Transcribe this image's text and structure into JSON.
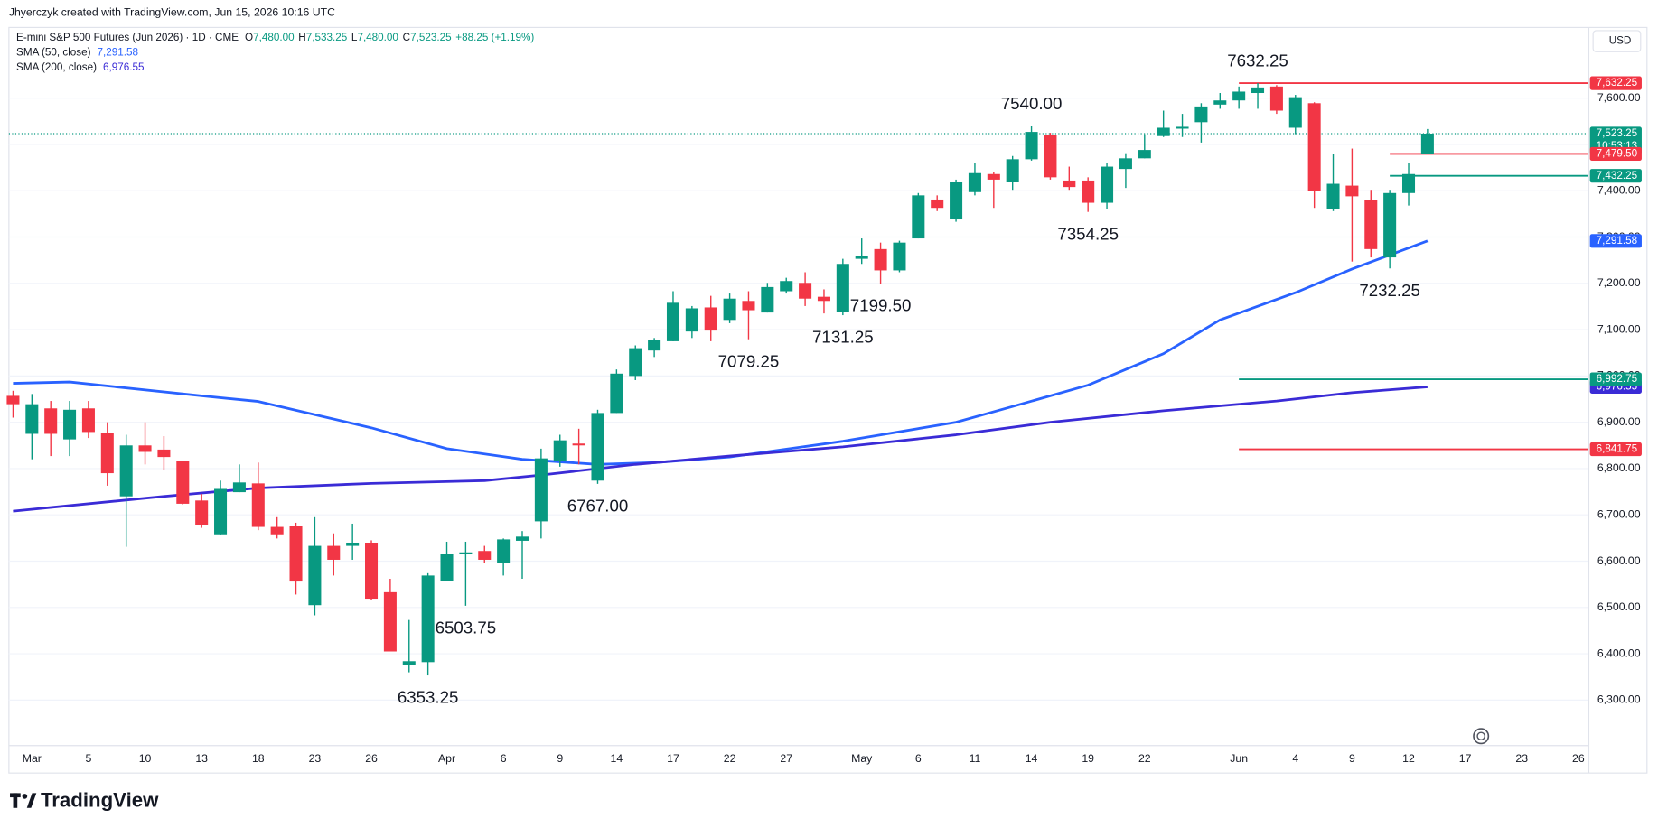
{
  "header": {
    "attribution": "Jhyerczyk created with TradingView.com, Jun 15, 2026 10:16 UTC"
  },
  "chart_data": {
    "type": "candlestick",
    "title": "E-mini S&P 500 Futures (Jun 2026) · 1D · CME",
    "ohlc_legend": [
      {
        "key": "O",
        "value": "7,480.00"
      },
      {
        "key": "H",
        "value": "7,533.25"
      },
      {
        "key": "L",
        "value": "7,480.00"
      },
      {
        "key": "C",
        "value": "7,523.25"
      }
    ],
    "change": "+88.25 (+1.19%)",
    "currency": "USD",
    "categories": [
      null,
      "Mar",
      null,
      null,
      "5",
      null,
      null,
      "10",
      null,
      null,
      "13",
      null,
      null,
      "18",
      null,
      null,
      "23",
      null,
      null,
      "26",
      null,
      null,
      null,
      "Apr",
      null,
      null,
      "6",
      null,
      null,
      "9",
      null,
      null,
      "14",
      null,
      null,
      "17",
      null,
      null,
      "22",
      null,
      null,
      "27",
      null,
      null,
      null,
      "May",
      null,
      null,
      "6",
      null,
      null,
      "11",
      null,
      null,
      "14",
      null,
      null,
      "19",
      null,
      null,
      "22",
      null,
      null,
      null,
      null,
      "Jun",
      null,
      null,
      "4",
      null,
      null,
      "9",
      null,
      null,
      "12",
      null,
      null,
      "17",
      null,
      null,
      "23",
      null,
      null,
      "26"
    ],
    "open": [
      6957,
      6875,
      6930,
      6863,
      6930,
      6877,
      6740,
      6850,
      6841,
      6816,
      6731,
      6658,
      6749,
      6768,
      6674,
      6676,
      6505,
      6633,
      6633,
      6640,
      6533,
      6375,
      6382,
      6558,
      6615,
      6622,
      6597,
      6644,
      6686,
      6816,
      6854,
      6774,
      6920,
      7000,
      7055,
      7075,
      7096,
      7148,
      7121,
      7162,
      7137,
      7183,
      7201,
      7171,
      7139,
      7253,
      7274,
      7228,
      7297,
      7381,
      7338,
      7397,
      7436,
      7418,
      7468,
      7520,
      7422,
      7422,
      7374,
      7447,
      7470,
      7518,
      7534,
      7548,
      7586,
      7595,
      7611,
      7625,
      7536,
      7589,
      7361,
      7411,
      7379,
      7256,
      7395,
      7480,
      null,
      null,
      null,
      null,
      null,
      null,
      null,
      null
    ],
    "high": [
      6968,
      6961,
      6946,
      6946,
      6946,
      6900,
      6873,
      6900,
      6870,
      6816,
      6745,
      6774,
      6809,
      6813,
      6695,
      6683,
      6695,
      6660,
      6681,
      6645,
      6562,
      6473,
      6574,
      6642,
      6642,
      6633,
      6649,
      6665,
      6843,
      6873,
      6886,
      6927,
      7014,
      7066,
      7082,
      7183,
      7151,
      7173,
      7178,
      7183,
      7201,
      7212,
      7224,
      7187,
      7253,
      7297,
      7288,
      7292,
      7395,
      7390,
      7424,
      7459,
      7440,
      7475,
      7540,
      7525,
      7452,
      7429,
      7459,
      7481,
      7522,
      7573,
      7566,
      7589,
      7611,
      7625,
      7632.25,
      7628,
      7607,
      7591,
      7479,
      7491,
      7402,
      7402,
      7459,
      7533.25,
      null,
      null,
      null,
      null,
      null,
      null,
      null,
      null
    ],
    "low": [
      6910,
      6820,
      6827,
      6827,
      6866,
      6763,
      6631,
      6809,
      6797,
      6722,
      6672,
      6656,
      6749,
      6667,
      6649,
      6528,
      6483,
      6569,
      6603,
      6517,
      6405,
      6360,
      6353.25,
      6558,
      6503.75,
      6597,
      6569,
      6562,
      6649,
      6804,
      6809,
      6767,
      6920,
      6991,
      7041,
      7075,
      7082,
      7075,
      7114,
      7079.25,
      7137,
      7178,
      7151,
      7135,
      7131.25,
      7242,
      7199.5,
      7224,
      7297,
      7356,
      7333,
      7390,
      7363,
      7402,
      7465,
      7424,
      7402,
      7354.25,
      7360,
      7406,
      7470,
      7516,
      7516,
      7504,
      7577,
      7577,
      7577,
      7566,
      7522,
      7363,
      7356,
      7247,
      7256,
      7232.25,
      7368,
      7480,
      null,
      null,
      null,
      null,
      null,
      null,
      null,
      null
    ],
    "close": [
      6939,
      6939,
      6875,
      6927,
      6879,
      6790,
      6850,
      6836,
      6825,
      6724,
      6679,
      6756,
      6770,
      6674,
      6658,
      6556,
      6633,
      6603,
      6640,
      6519,
      6405,
      6384,
      6569,
      6615,
      6619,
      6603,
      6647,
      6653,
      6822,
      6861,
      6850,
      6920,
      7005,
      7060,
      7077,
      7158,
      7146,
      7098,
      7167,
      7142,
      7192,
      7205,
      7167,
      7162,
      7242,
      7260,
      7228,
      7288,
      7390,
      7363,
      7418,
      7438,
      7424,
      7468,
      7527,
      7429,
      7408,
      7374,
      7452,
      7470,
      7488,
      7536,
      7538,
      7582,
      7595,
      7614,
      7623,
      7573,
      7602,
      7399,
      7415,
      7388,
      7274,
      7395,
      7436,
      7523.25,
      null,
      null,
      null,
      null,
      null,
      null,
      null,
      null
    ],
    "up_color": "#089981",
    "down_color": "#f23645",
    "ylim": [
      6204,
      7748
    ],
    "yticks": [
      {
        "value": 6300,
        "label": "6,300.00"
      },
      {
        "value": 6400,
        "label": "6,400.00"
      },
      {
        "value": 6500,
        "label": "6,500.00"
      },
      {
        "value": 6600,
        "label": "6,600.00"
      },
      {
        "value": 6700,
        "label": "6,700.00"
      },
      {
        "value": 6800,
        "label": "6,800.00"
      },
      {
        "value": 6900,
        "label": "6,900.00"
      },
      {
        "value": 7000,
        "label": "7,000.00"
      },
      {
        "value": 7100,
        "label": "7,100.00"
      },
      {
        "value": 7200,
        "label": "7,200.00"
      },
      {
        "value": 7300,
        "label": "7,300.00"
      },
      {
        "value": 7400,
        "label": "7,400.00"
      },
      {
        "value": 7500,
        "label": "7,500.00"
      },
      {
        "value": 7600,
        "label": "7,600.00"
      }
    ],
    "grid": true,
    "sma": [
      {
        "name": "SMA (50, close)",
        "value_label": "7,291.58",
        "color": "#2962ff",
        "x": [
          0,
          3,
          10,
          13,
          19,
          23,
          27,
          31,
          34,
          38,
          44,
          50,
          53,
          57,
          61,
          64,
          68,
          71,
          75
        ],
        "values": [
          6984,
          6987,
          6957,
          6945,
          6888,
          6843,
          6820,
          6809,
          6813,
          6825,
          6859,
          6900,
          6934,
          6980,
          7048,
          7121,
          7180,
          7231,
          7291.58
        ]
      },
      {
        "name": "SMA (200, close)",
        "value_label": "6,976.55",
        "color": "#3a2bd6",
        "x": [
          0,
          8,
          13,
          19,
          25,
          28,
          33,
          38,
          44,
          50,
          55,
          61,
          67,
          71,
          75
        ],
        "values": [
          6708,
          6740,
          6758,
          6768,
          6774,
          6786,
          6809,
          6827,
          6847,
          6873,
          6900,
          6925,
          6946,
          6964,
          6976.55
        ]
      }
    ],
    "levels": [
      {
        "value": 7632.25,
        "label": "7,632.25",
        "color": "#f23645",
        "start": 65
      },
      {
        "value": 7523.25,
        "label": "7,523.25",
        "color": "#089981",
        "start": 0,
        "style": "dotted",
        "countdown": "10:53:13"
      },
      {
        "value": 7479.5,
        "label": "7,479.50",
        "color": "#f23645",
        "start": 73
      },
      {
        "value": 7432.25,
        "label": "7,432.25",
        "color": "#089981",
        "start": 73
      },
      {
        "value": 6992.75,
        "label": "6,992.75",
        "color": "#089981",
        "start": 65
      },
      {
        "value": 6841.75,
        "label": "6,841.75",
        "color": "#f23645",
        "start": 65
      }
    ],
    "annotations": [
      {
        "text": "7632.25",
        "x": 66,
        "position": "above"
      },
      {
        "text": "7540.00",
        "x": 54,
        "position": "above"
      },
      {
        "text": "7354.25",
        "x": 57,
        "position": "below"
      },
      {
        "text": "7232.25",
        "x": 73,
        "position": "below"
      },
      {
        "text": "7199.50",
        "x": 46,
        "position": "below"
      },
      {
        "text": "7131.25",
        "x": 44,
        "position": "below"
      },
      {
        "text": "7079.25",
        "x": 39,
        "position": "below"
      },
      {
        "text": "6767.00",
        "x": 31,
        "position": "below"
      },
      {
        "text": "6503.75",
        "x": 24,
        "position": "below"
      },
      {
        "text": "6353.25",
        "x": 22,
        "position": "below"
      }
    ]
  },
  "footer": {
    "logo": "TradingView"
  }
}
